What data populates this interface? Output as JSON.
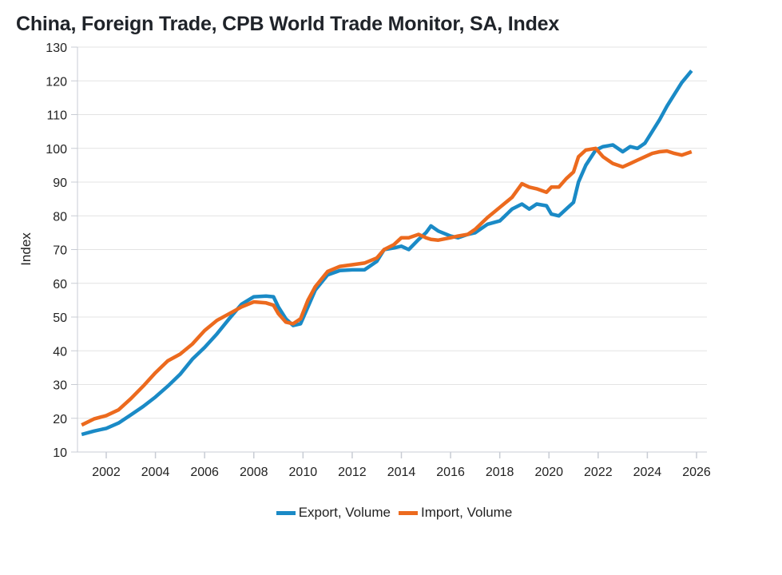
{
  "chart_data": {
    "type": "line",
    "title": "China, Foreign Trade, CPB World Trade Monitor, SA, Index",
    "xlabel": "",
    "ylabel": "Index",
    "xlim": [
      2000.9,
      2026.5
    ],
    "ylim": [
      10,
      130
    ],
    "yticks": [
      10,
      20,
      30,
      40,
      50,
      60,
      70,
      80,
      90,
      100,
      110,
      120,
      130
    ],
    "xticks": [
      2002,
      2004,
      2006,
      2008,
      2010,
      2012,
      2014,
      2016,
      2018,
      2020,
      2022,
      2024,
      2026
    ],
    "grid": "horizontal",
    "legend_position": "bottom-center",
    "series": [
      {
        "name": "Export, Volume",
        "color": "#1a8ac6",
        "x": [
          2001.0,
          2001.5,
          2002.0,
          2002.5,
          2003.0,
          2003.5,
          2004.0,
          2004.5,
          2005.0,
          2005.5,
          2006.0,
          2006.5,
          2007.0,
          2007.5,
          2008.0,
          2008.5,
          2008.8,
          2009.0,
          2009.3,
          2009.6,
          2009.9,
          2010.2,
          2010.5,
          2011.0,
          2011.5,
          2012.0,
          2012.5,
          2013.0,
          2013.3,
          2013.7,
          2014.0,
          2014.3,
          2014.7,
          2015.0,
          2015.2,
          2015.5,
          2016.0,
          2016.3,
          2016.7,
          2017.0,
          2017.5,
          2018.0,
          2018.5,
          2018.9,
          2019.2,
          2019.5,
          2019.9,
          2020.1,
          2020.4,
          2020.7,
          2021.0,
          2021.2,
          2021.5,
          2021.9,
          2022.2,
          2022.6,
          2023.0,
          2023.3,
          2023.6,
          2023.9,
          2024.2,
          2024.5,
          2024.8,
          2025.1,
          2025.4,
          2025.8
        ],
        "values": [
          15.2,
          16.2,
          17.0,
          18.6,
          21.0,
          23.5,
          26.3,
          29.5,
          33.0,
          37.5,
          41.0,
          45.0,
          49.5,
          53.8,
          56.0,
          56.2,
          56.0,
          53.0,
          49.5,
          47.5,
          48.0,
          53.0,
          58.0,
          62.5,
          63.8,
          64.0,
          64.0,
          66.5,
          70.0,
          70.5,
          71.0,
          70.0,
          73.0,
          75.0,
          77.0,
          75.5,
          74.0,
          73.5,
          74.5,
          75.0,
          77.5,
          78.5,
          82.0,
          83.5,
          82.0,
          83.5,
          83.0,
          80.5,
          80.0,
          82.0,
          84.0,
          90.0,
          95.0,
          99.5,
          100.5,
          101.0,
          99.0,
          100.5,
          100.0,
          101.5,
          105.0,
          108.5,
          112.5,
          116.0,
          119.5,
          123.0
        ]
      },
      {
        "name": "Import, Volume",
        "color": "#ec6a1e",
        "x": [
          2001.0,
          2001.5,
          2002.0,
          2002.5,
          2003.0,
          2003.5,
          2004.0,
          2004.5,
          2005.0,
          2005.5,
          2006.0,
          2006.5,
          2007.0,
          2007.5,
          2008.0,
          2008.5,
          2008.8,
          2009.0,
          2009.3,
          2009.6,
          2009.9,
          2010.2,
          2010.5,
          2011.0,
          2011.5,
          2012.0,
          2012.5,
          2013.0,
          2013.3,
          2013.7,
          2014.0,
          2014.3,
          2014.7,
          2015.0,
          2015.2,
          2015.5,
          2016.0,
          2016.3,
          2016.7,
          2017.0,
          2017.5,
          2018.0,
          2018.5,
          2018.9,
          2019.2,
          2019.5,
          2019.9,
          2020.1,
          2020.4,
          2020.7,
          2021.0,
          2021.2,
          2021.5,
          2021.9,
          2022.2,
          2022.6,
          2023.0,
          2023.3,
          2023.6,
          2023.9,
          2024.2,
          2024.5,
          2024.8,
          2025.1,
          2025.4,
          2025.8
        ],
        "values": [
          18.0,
          19.8,
          20.8,
          22.5,
          25.8,
          29.5,
          33.5,
          37.0,
          39.0,
          42.0,
          46.0,
          49.0,
          51.0,
          53.0,
          54.5,
          54.2,
          53.5,
          51.0,
          48.5,
          48.0,
          49.5,
          55.0,
          59.0,
          63.5,
          65.0,
          65.5,
          66.0,
          67.5,
          70.0,
          71.5,
          73.5,
          73.5,
          74.5,
          73.5,
          73.0,
          72.8,
          73.5,
          74.0,
          74.5,
          76.0,
          79.5,
          82.5,
          85.5,
          89.5,
          88.5,
          88.0,
          87.0,
          88.5,
          88.5,
          91.0,
          93.0,
          97.5,
          99.5,
          100.0,
          97.5,
          95.5,
          94.5,
          95.5,
          96.5,
          97.5,
          98.5,
          99.0,
          99.2,
          98.5,
          98.0,
          99.0
        ]
      }
    ]
  },
  "legend": {
    "items": [
      {
        "label": "Export, Volume",
        "color": "#1a8ac6"
      },
      {
        "label": "Import, Volume",
        "color": "#ec6a1e"
      }
    ]
  }
}
